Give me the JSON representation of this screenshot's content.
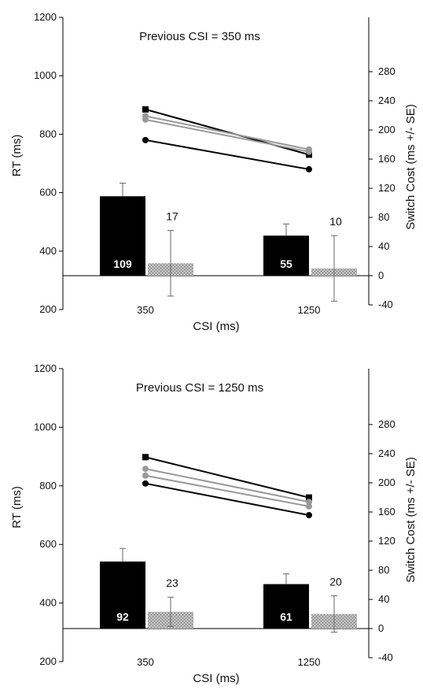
{
  "chart_data": [
    {
      "type": "bar",
      "title": "Previous CSI = 350 ms",
      "xlabel": "CSI (ms)",
      "ylabel": "RT (ms)",
      "y2label": "Switch Cost (ms +/- SE)",
      "ylim": [
        200,
        1200
      ],
      "y2lim": [
        -40,
        300
      ],
      "yticks": [
        "200",
        "400",
        "600",
        "800",
        "1000",
        "1200"
      ],
      "y2ticks": [
        "-40",
        "0",
        "40",
        "80",
        "120",
        "160",
        "200",
        "240",
        "280"
      ],
      "categories": [
        "350",
        "1250"
      ],
      "bars": [
        {
          "category": "350",
          "value": 109,
          "label": "109",
          "error": 18,
          "color": "#000000"
        },
        {
          "category": "350",
          "value": 17,
          "label": "17",
          "error": 45,
          "color": "#aaaaaa"
        },
        {
          "category": "1250",
          "value": 55,
          "label": "55",
          "error": 16,
          "color": "#000000"
        },
        {
          "category": "1250",
          "value": 10,
          "label": "10",
          "error": 45,
          "color": "#aaaaaa"
        }
      ],
      "line_series": [
        {
          "marker": "square",
          "color": "#000000",
          "values": [
            885,
            730
          ]
        },
        {
          "marker": "circle",
          "color": "#999999",
          "values": [
            862,
            748
          ]
        },
        {
          "marker": "circle",
          "color": "#999999",
          "values": [
            850,
            740
          ]
        },
        {
          "marker": "circle",
          "color": "#000000",
          "values": [
            780,
            680
          ]
        }
      ],
      "grid": false,
      "legend": "none"
    },
    {
      "type": "bar",
      "title": "Previous CSI = 1250 ms",
      "xlabel": "CSI (ms)",
      "ylabel": "RT (ms)",
      "y2label": "Switch Cost (ms +/- SE)",
      "ylim": [
        200,
        1200
      ],
      "y2lim": [
        -40,
        300
      ],
      "yticks": [
        "200",
        "400",
        "600",
        "800",
        "1000",
        "1200"
      ],
      "y2ticks": [
        "-40",
        "0",
        "40",
        "80",
        "120",
        "160",
        "200",
        "240",
        "280"
      ],
      "categories": [
        "350",
        "1250"
      ],
      "bars": [
        {
          "category": "350",
          "value": 92,
          "label": "92",
          "error": 18,
          "color": "#000000"
        },
        {
          "category": "350",
          "value": 23,
          "label": "23",
          "error": 20,
          "color": "#aaaaaa"
        },
        {
          "category": "1250",
          "value": 61,
          "label": "61",
          "error": 14,
          "color": "#000000"
        },
        {
          "category": "1250",
          "value": 20,
          "label": "20",
          "error": 25,
          "color": "#aaaaaa"
        }
      ],
      "line_series": [
        {
          "marker": "square",
          "color": "#000000",
          "values": [
            898,
            760
          ]
        },
        {
          "marker": "circle",
          "color": "#999999",
          "values": [
            858,
            745
          ]
        },
        {
          "marker": "circle",
          "color": "#999999",
          "values": [
            835,
            730
          ]
        },
        {
          "marker": "circle",
          "color": "#000000",
          "values": [
            808,
            700
          ]
        }
      ],
      "grid": false,
      "legend": "none"
    }
  ]
}
